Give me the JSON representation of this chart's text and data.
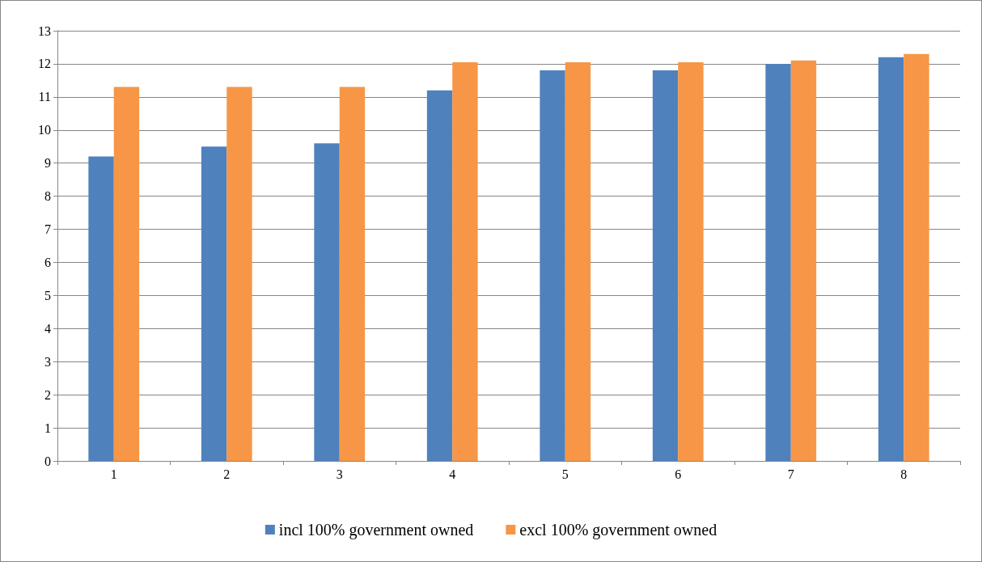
{
  "chart_data": {
    "type": "bar",
    "categories": [
      "1",
      "2",
      "3",
      "4",
      "5",
      "6",
      "7",
      "8"
    ],
    "series": [
      {
        "name": "incl 100% government owned",
        "color": "#4f81bd",
        "values": [
          9.2,
          9.5,
          9.6,
          11.2,
          11.8,
          11.8,
          12.0,
          12.2
        ]
      },
      {
        "name": "excl 100% government owned",
        "color": "#f79646",
        "values": [
          11.3,
          11.3,
          11.3,
          12.05,
          12.05,
          12.05,
          12.1,
          12.3
        ]
      }
    ],
    "ylim": [
      0,
      13
    ],
    "yticks": [
      0,
      1,
      2,
      3,
      4,
      5,
      6,
      7,
      8,
      9,
      10,
      11,
      12,
      13
    ],
    "grid": "y",
    "legend": "bottom"
  }
}
